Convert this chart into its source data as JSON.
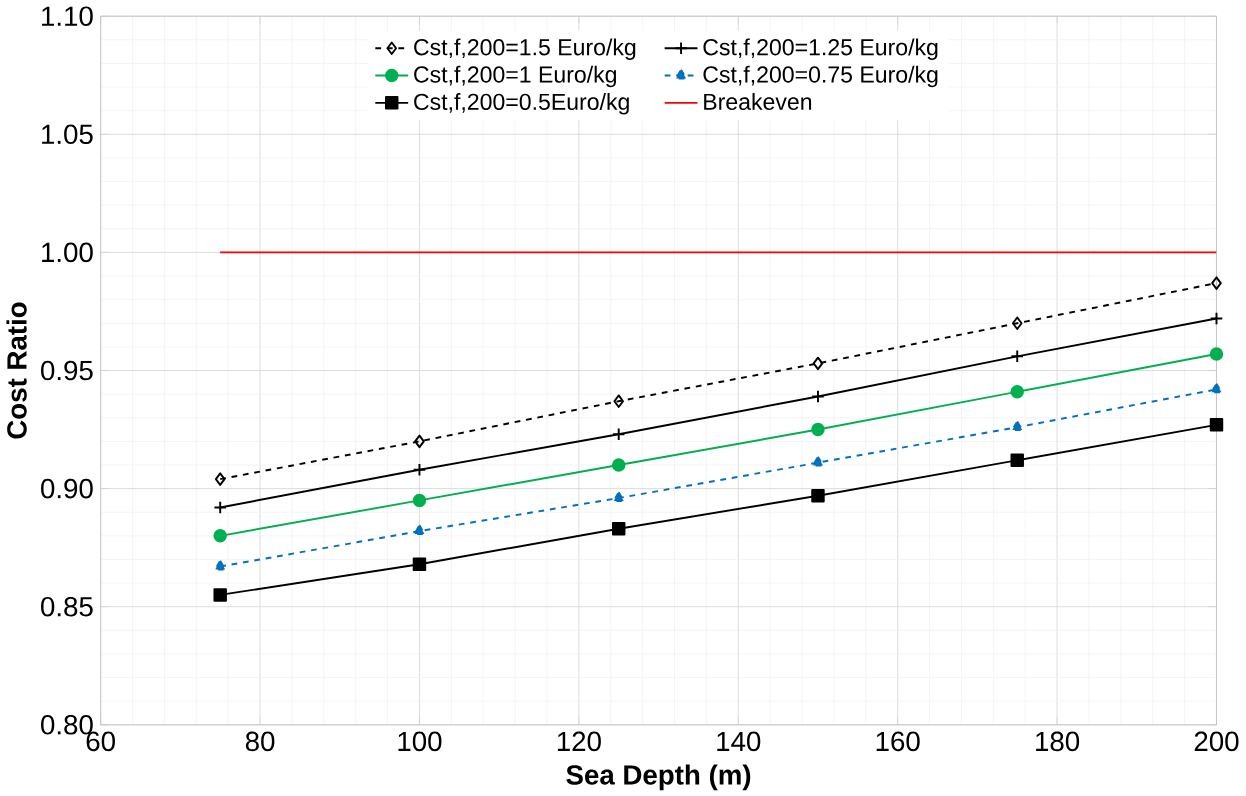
{
  "chart_data": {
    "type": "line",
    "xlabel": "Sea Depth (m)",
    "ylabel": "Cost Ratio",
    "x": [
      75,
      100,
      125,
      150,
      175,
      200
    ],
    "series": [
      {
        "name": "Cst,f,200=1.5 Euro/kg",
        "color": "#000000",
        "marker": "diamond",
        "line_style": "dashed",
        "values": [
          0.904,
          0.92,
          0.937,
          0.953,
          0.97,
          0.987
        ]
      },
      {
        "name": "Cst,f,200=1.25 Euro/kg",
        "color": "#000000",
        "marker": "cross",
        "line_style": "solid",
        "values": [
          0.892,
          0.908,
          0.923,
          0.939,
          0.956,
          0.972
        ]
      },
      {
        "name": "Cst,f,200=1 Euro/kg",
        "color": "#00b050",
        "marker": "circle",
        "line_style": "solid",
        "values": [
          0.88,
          0.895,
          0.91,
          0.925,
          0.941,
          0.957
        ]
      },
      {
        "name": "Cst,f,200=0.75 Euro/kg",
        "color": "#0070c0",
        "marker": "triangle",
        "line_style": "dashed",
        "values": [
          0.867,
          0.882,
          0.896,
          0.911,
          0.926,
          0.942
        ]
      },
      {
        "name": "Cst,f,200=0.5Euro/kg",
        "color": "#000000",
        "marker": "square",
        "line_style": "solid",
        "values": [
          0.855,
          0.868,
          0.883,
          0.897,
          0.912,
          0.927
        ]
      },
      {
        "name": "Breakeven",
        "color": "#ff0000",
        "marker": "none",
        "line_style": "solid",
        "values": [
          1.0,
          1.0,
          1.0,
          1.0,
          1.0,
          1.0
        ]
      }
    ],
    "xlim": [
      60,
      200
    ],
    "xticks": [
      60,
      80,
      100,
      120,
      140,
      160,
      180,
      200
    ],
    "ylim": [
      0.8,
      1.1
    ],
    "yticks": [
      {
        "value": 0.8,
        "label": "0.80"
      },
      {
        "value": 0.85,
        "label": "0.85"
      },
      {
        "value": 0.9,
        "label": "0.90"
      },
      {
        "value": 0.95,
        "label": "0.95"
      },
      {
        "value": 1.0,
        "label": "1.00"
      },
      {
        "value": 1.05,
        "label": "1.05"
      },
      {
        "value": 1.1,
        "label": "1.10"
      }
    ],
    "grid": true,
    "legend": "top"
  }
}
